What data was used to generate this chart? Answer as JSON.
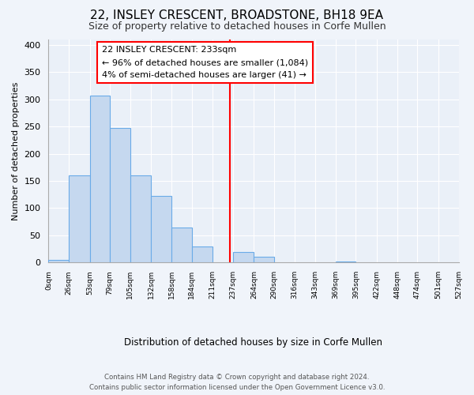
{
  "title": "22, INSLEY CRESCENT, BROADSTONE, BH18 9EA",
  "subtitle": "Size of property relative to detached houses in Corfe Mullen",
  "xlabel": "Distribution of detached houses by size in Corfe Mullen",
  "ylabel": "Number of detached properties",
  "bin_edges": [
    0,
    26,
    53,
    79,
    105,
    132,
    158,
    184,
    211,
    237,
    264,
    290,
    316,
    343,
    369,
    395,
    422,
    448,
    474,
    501,
    527
  ],
  "bar_heights": [
    5,
    160,
    307,
    247,
    160,
    122,
    65,
    30,
    0,
    19,
    10,
    0,
    0,
    0,
    2,
    0,
    0,
    0,
    0,
    0
  ],
  "bar_color": "#c5d8ef",
  "bar_edgecolor": "#6aabe8",
  "reference_line_x": 233,
  "reference_line_color": "red",
  "box_text_line1": "22 INSLEY CRESCENT: 233sqm",
  "box_text_line2": "← 96% of detached houses are smaller (1,084)",
  "box_text_line3": "4% of semi-detached houses are larger (41) →",
  "ylim": [
    0,
    410
  ],
  "yticks": [
    0,
    50,
    100,
    150,
    200,
    250,
    300,
    350,
    400
  ],
  "footer_line1": "Contains HM Land Registry data © Crown copyright and database right 2024.",
  "footer_line2": "Contains public sector information licensed under the Open Government Licence v3.0.",
  "bg_color": "#f0f4fa",
  "plot_bg_color": "#eaf0f8",
  "grid_color": "#ffffff"
}
